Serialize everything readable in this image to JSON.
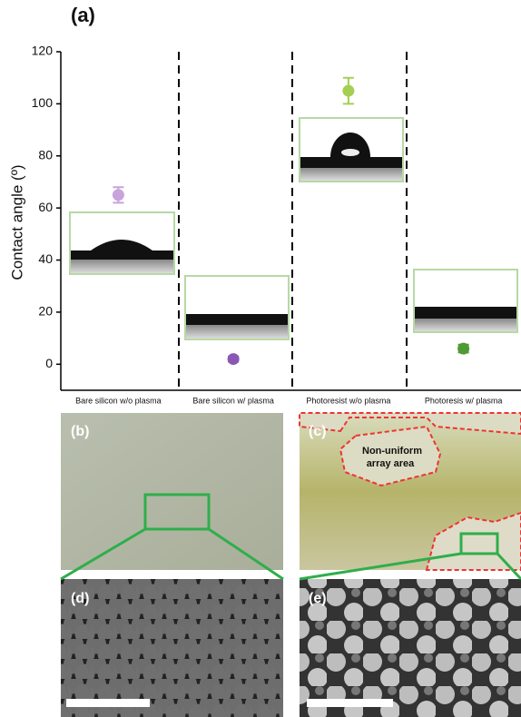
{
  "panel_labels": [
    "(a)",
    "(b)",
    "(c)",
    "(d)",
    "(e)"
  ],
  "annotation": [
    "Non-uniform",
    "array area"
  ],
  "chart_data": {
    "type": "scatter",
    "y_label": "Contact angle (º)",
    "categories": [
      "Bare silicon w/o plasma",
      "Bare silicon w/ plasma",
      "Photoresist w/o plasma",
      "Photoresis w/ plasma"
    ],
    "values": [
      65,
      2,
      105,
      6
    ],
    "errors": [
      3,
      1,
      5,
      1.5
    ],
    "colors": [
      "#c9a3dc",
      "#8a58b4",
      "#a4cf52",
      "#4f9a34"
    ],
    "ylim": [
      -10,
      120
    ],
    "yticks": [
      0,
      20,
      40,
      60,
      80,
      100,
      120
    ]
  }
}
